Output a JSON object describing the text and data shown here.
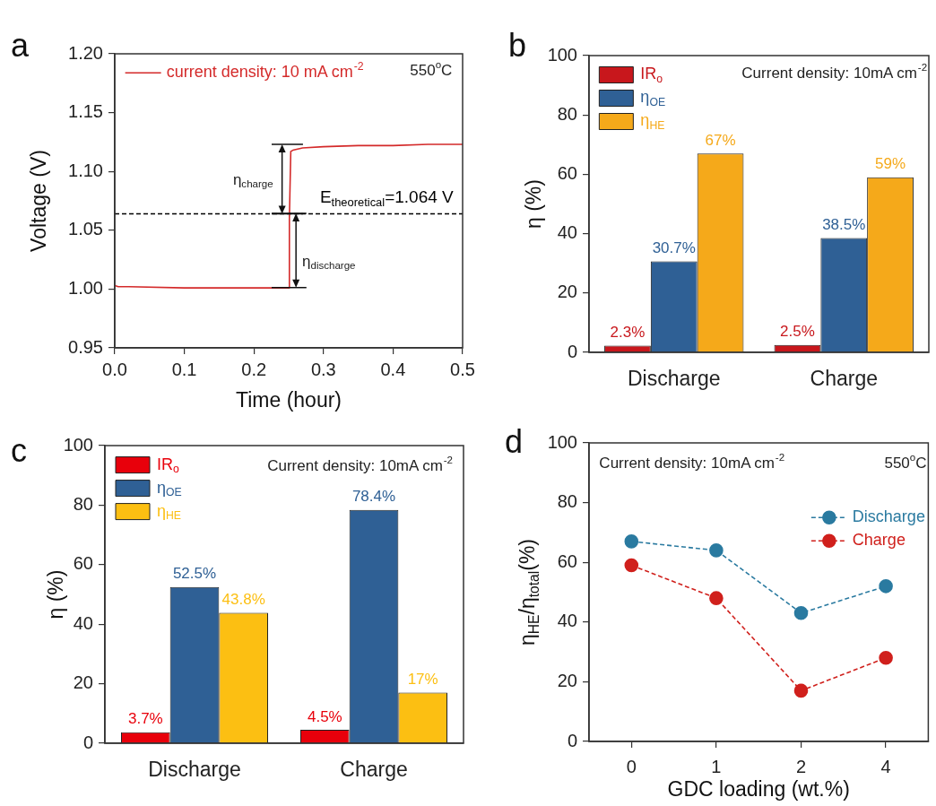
{
  "chart_data": [
    {
      "type": "line",
      "title": "a",
      "xlabel": "Time (hour)",
      "ylabel": "Voltage (V)",
      "x": [
        0,
        0.005,
        0.02,
        0.1,
        0.2,
        0.25,
        0.251,
        0.253,
        0.256,
        0.27,
        0.3,
        0.35,
        0.4,
        0.45,
        0.5
      ],
      "series": [
        {
          "name": "current density: 10 mA cm$^{-2}$",
          "color": "#d42a2a",
          "values": [
            1.003,
            1.002,
            1.002,
            1.001,
            1.001,
            1.001,
            1.06,
            1.117,
            1.118,
            1.12,
            1.121,
            1.122,
            1.122,
            1.123,
            1.123
          ]
        }
      ],
      "xlim": [
        0,
        0.5
      ],
      "xticks": [
        {
          "value": 0,
          "label": "0.0"
        },
        0.1,
        0.2,
        0.3,
        0.4,
        0.5
      ],
      "ylim": [
        0.95,
        1.2
      ],
      "yticks": [
        0.95,
        {
          "value": 1,
          "label": "1.00"
        },
        1.05,
        {
          "value": 1.1,
          "label": "1.10"
        },
        1.15,
        {
          "value": 1.2,
          "label": "1.20"
        }
      ],
      "ref_lines": [
        {
          "axis": "y",
          "value": 1.064,
          "label": "E$_{theoretical}$=1.064 V",
          "color": "#000000",
          "line_style": "dashed"
        }
      ],
      "legend": "top left",
      "marker": "none",
      "line_style": "solid",
      "grid": false,
      "annotations": [
        "550$^{o}$C",
        "η$_{charge}$",
        {
          "text": "η$_{discharge}$",
          "x": 0.25,
          "y": 1.001
        }
      ]
    },
    {
      "type": "bar",
      "title": "b",
      "ylabel": "η (%)",
      "categories": [
        "Discharge",
        "Charge"
      ],
      "series": [
        {
          "name": "IR$_{o}$",
          "color": "#c8171c",
          "values": [
            2.3,
            2.5
          ],
          "value_labels": [
            "2.3%",
            "2.5%"
          ]
        },
        {
          "name": "η$_{OE}$",
          "color": "#2f6095",
          "values": [
            30.7,
            38.5
          ],
          "value_labels": [
            "30.7%",
            "38.5%"
          ]
        },
        {
          "name": "η$_{HE}$",
          "color": "#f5a91a",
          "values": [
            67,
            59
          ],
          "value_labels": [
            "67%",
            "59%"
          ]
        }
      ],
      "ylim": [
        0,
        100
      ],
      "yticks": [
        0,
        20,
        40,
        60,
        80,
        100
      ],
      "legend": "top left",
      "grid": false,
      "annotations": [
        "Current density: 10mA cm$^{-2}$"
      ]
    },
    {
      "type": "bar",
      "title": "c",
      "ylabel": "η (%)",
      "categories": [
        "Discharge",
        "Charge"
      ],
      "series": [
        {
          "name": "IR$_{o}$",
          "color": "#e8000b",
          "values": [
            3.7,
            4.5
          ],
          "value_labels": [
            "3.7%",
            "4.5%"
          ]
        },
        {
          "name": "η$_{OE}$",
          "color": "#2f6095",
          "values": [
            52.5,
            78.4
          ],
          "value_labels": [
            "52.5%",
            "78.4%"
          ]
        },
        {
          "name": "η$_{HE}$",
          "color": "#fcbf12",
          "values": [
            43.8,
            17
          ],
          "value_labels": [
            "43.8%",
            "17%"
          ]
        }
      ],
      "ylim": [
        0,
        100
      ],
      "yticks": [
        0,
        20,
        40,
        60,
        80,
        100
      ],
      "legend": "top left",
      "grid": false,
      "annotations": [
        "Current density: 10mA cm$^{-2}$"
      ]
    },
    {
      "type": "line",
      "title": "d",
      "xlabel": "GDC loading (wt.%)",
      "ylabel": "η$_{HE}$/η$_{total}$(%)",
      "categories": [
        "0",
        "1",
        "2",
        "4"
      ],
      "series": [
        {
          "name": "Discharge",
          "color": "#2a7aa0",
          "values": [
            67,
            64,
            43,
            52
          ]
        },
        {
          "name": "Charge",
          "color": "#d0201c",
          "values": [
            59,
            48,
            17,
            28
          ]
        }
      ],
      "ylim": [
        0,
        100
      ],
      "yticks": [
        0,
        20,
        40,
        60,
        80,
        100
      ],
      "legend": "right",
      "marker": "circle",
      "line_style": "dashed",
      "grid": false,
      "annotations": [
        "Current density: 10mA cm$^{-2}$",
        "550$^{o}$C"
      ]
    }
  ]
}
